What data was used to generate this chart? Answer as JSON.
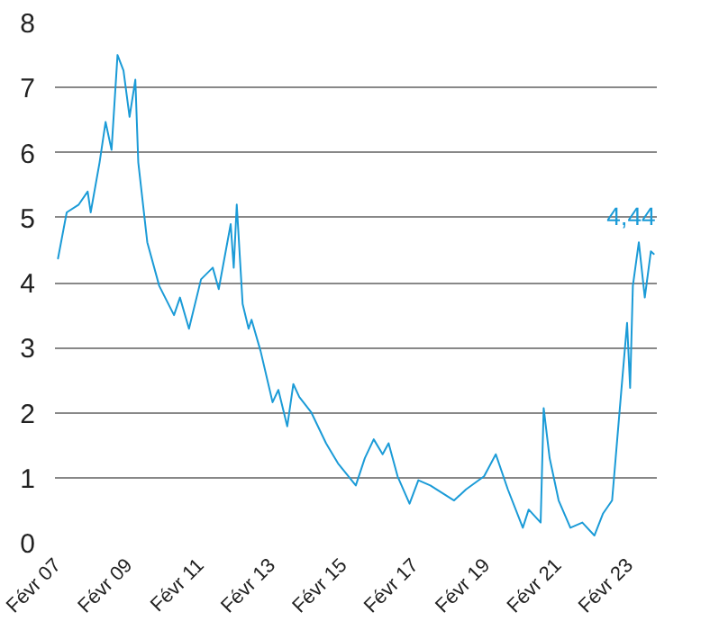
{
  "chart_data": {
    "type": "line",
    "grid": "y",
    "xlim": [
      "2007-01",
      "2023-11"
    ],
    "ylim": [
      0,
      8
    ],
    "yticks": [
      0,
      1,
      2,
      3,
      4,
      5,
      6,
      7,
      8
    ],
    "xticks": [
      {
        "value": "2007-02",
        "label": "Févr 07"
      },
      {
        "value": "2009-02",
        "label": "Févr 09"
      },
      {
        "value": "2011-02",
        "label": "Févr 11"
      },
      {
        "value": "2013-02",
        "label": "Févr 13"
      },
      {
        "value": "2015-02",
        "label": "Févr 15"
      },
      {
        "value": "2017-02",
        "label": "Févr 17"
      },
      {
        "value": "2019-02",
        "label": "Févr 19"
      },
      {
        "value": "2021-02",
        "label": "Févr 21"
      },
      {
        "value": "2023-02",
        "label": "Févr 23"
      }
    ],
    "annotations": [
      {
        "text": "4,44",
        "x": "2023-10",
        "y": 4.44
      }
    ],
    "series": [
      {
        "color": "#1b9bd7",
        "x": [
          "2007-02",
          "2007-05",
          "2007-09",
          "2007-12",
          "2008-01",
          "2008-04",
          "2008-06",
          "2008-08",
          "2008-10",
          "2008-12",
          "2009-02",
          "2009-04",
          "2009-05",
          "2009-08",
          "2009-12",
          "2010-05",
          "2010-07",
          "2010-10",
          "2011-02",
          "2011-06",
          "2011-08",
          "2011-12",
          "2012-01",
          "2012-02",
          "2012-04",
          "2012-06",
          "2012-07",
          "2012-10",
          "2013-02",
          "2013-04",
          "2013-07",
          "2013-09",
          "2013-11",
          "2014-03",
          "2014-08",
          "2014-12",
          "2015-06",
          "2015-09",
          "2015-12",
          "2016-03",
          "2016-05",
          "2016-08",
          "2016-12",
          "2017-03",
          "2017-07",
          "2018-03",
          "2018-07",
          "2019-01",
          "2019-05",
          "2019-09",
          "2020-02",
          "2020-04",
          "2020-08",
          "2020-09",
          "2020-11",
          "2021-02",
          "2021-06",
          "2021-10",
          "2022-02",
          "2022-05",
          "2022-08",
          "2022-11",
          "2023-01",
          "2023-02",
          "2023-03",
          "2023-05",
          "2023-07",
          "2023-09",
          "2023-10"
        ],
        "values": [
          4.37,
          5.08,
          5.2,
          5.4,
          5.08,
          5.85,
          6.47,
          6.04,
          7.5,
          7.26,
          6.55,
          7.12,
          5.85,
          4.62,
          3.95,
          3.5,
          3.77,
          3.29,
          4.05,
          4.23,
          3.9,
          4.9,
          4.23,
          5.2,
          3.67,
          3.29,
          3.43,
          2.95,
          2.16,
          2.35,
          1.79,
          2.44,
          2.24,
          2.01,
          1.53,
          1.22,
          0.88,
          1.3,
          1.59,
          1.36,
          1.53,
          1.02,
          0.6,
          0.96,
          0.88,
          0.65,
          0.82,
          1.02,
          1.36,
          0.82,
          0.23,
          0.51,
          0.31,
          2.07,
          1.3,
          0.65,
          0.23,
          0.31,
          0.11,
          0.45,
          0.65,
          2.3,
          3.38,
          2.38,
          3.95,
          4.62,
          3.77,
          4.48,
          4.44
        ]
      }
    ]
  }
}
